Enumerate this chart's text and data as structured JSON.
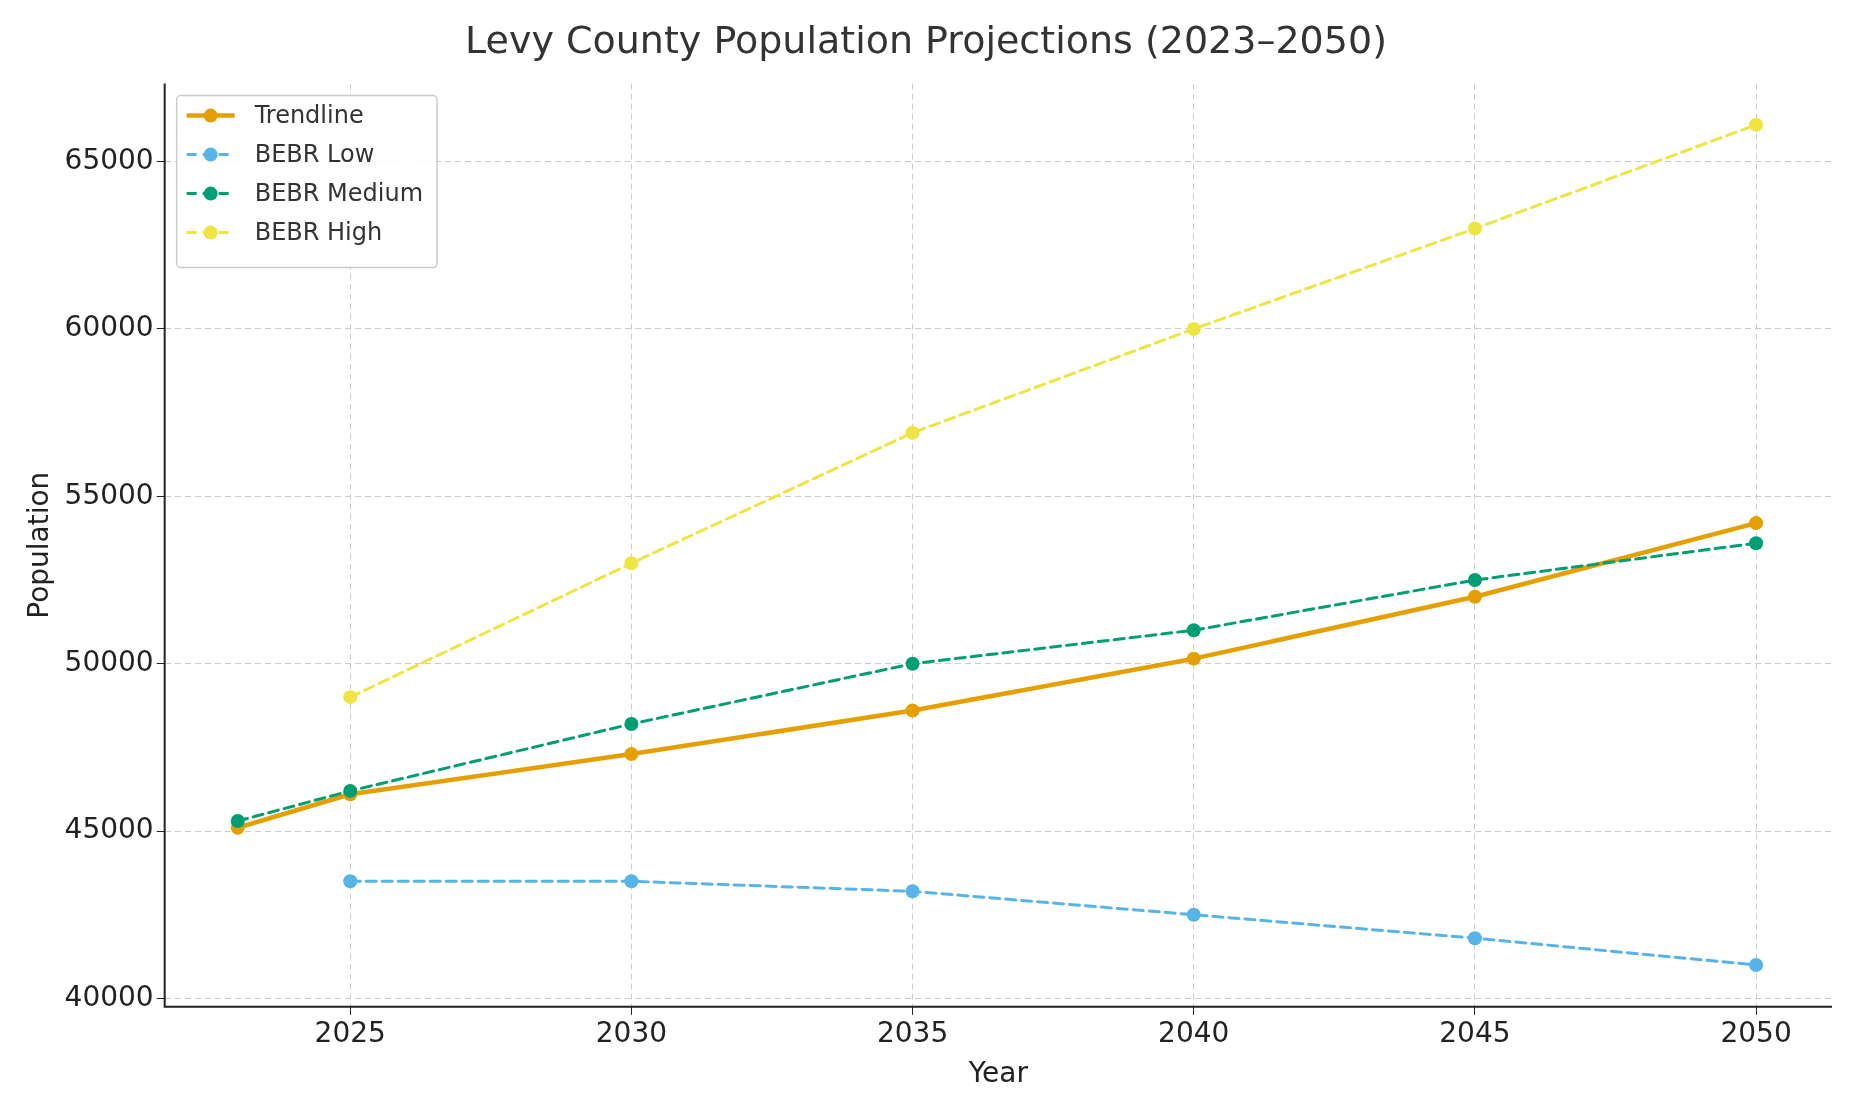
{
  "chart_data": {
    "type": "line",
    "title": "Levy County Population Projections (2023–2050)",
    "xlabel": "Year",
    "ylabel": "Population",
    "xlim": [
      2021.7,
      2051.35
    ],
    "xticks": [
      2025,
      2030,
      2035,
      2040,
      2045,
      2050
    ],
    "ylim": [
      39750,
      67330
    ],
    "yticks": [
      40000,
      45000,
      50000,
      55000,
      60000,
      65000
    ],
    "grid": true,
    "legend": "top left",
    "marker": "circle",
    "series": [
      {
        "name": "Trendline",
        "color": "#e69f00",
        "line_style": "solid",
        "x": [
          2023,
          2025,
          2030,
          2035,
          2040,
          2045,
          2050
        ],
        "values": [
          45100,
          46100,
          47300,
          48600,
          50150,
          52000,
          54200
        ]
      },
      {
        "name": "BEBR Low",
        "color": "#56b4e9",
        "line_style": "dashed",
        "x": [
          2025,
          2030,
          2035,
          2040,
          2045,
          2050
        ],
        "values": [
          43500,
          43500,
          43200,
          42500,
          41800,
          41000
        ]
      },
      {
        "name": "BEBR Medium",
        "color": "#009e73",
        "line_style": "dashed",
        "x": [
          2023,
          2025,
          2030,
          2035,
          2040,
          2045,
          2050
        ],
        "values": [
          45300,
          46200,
          48200,
          50000,
          51000,
          52500,
          53600
        ]
      },
      {
        "name": "BEBR High",
        "color": "#f0e442",
        "line_style": "dashed",
        "x": [
          2025,
          2030,
          2035,
          2040,
          2045,
          2050
        ],
        "values": [
          49000,
          53000,
          56900,
          60000,
          63000,
          66100
        ]
      }
    ]
  }
}
